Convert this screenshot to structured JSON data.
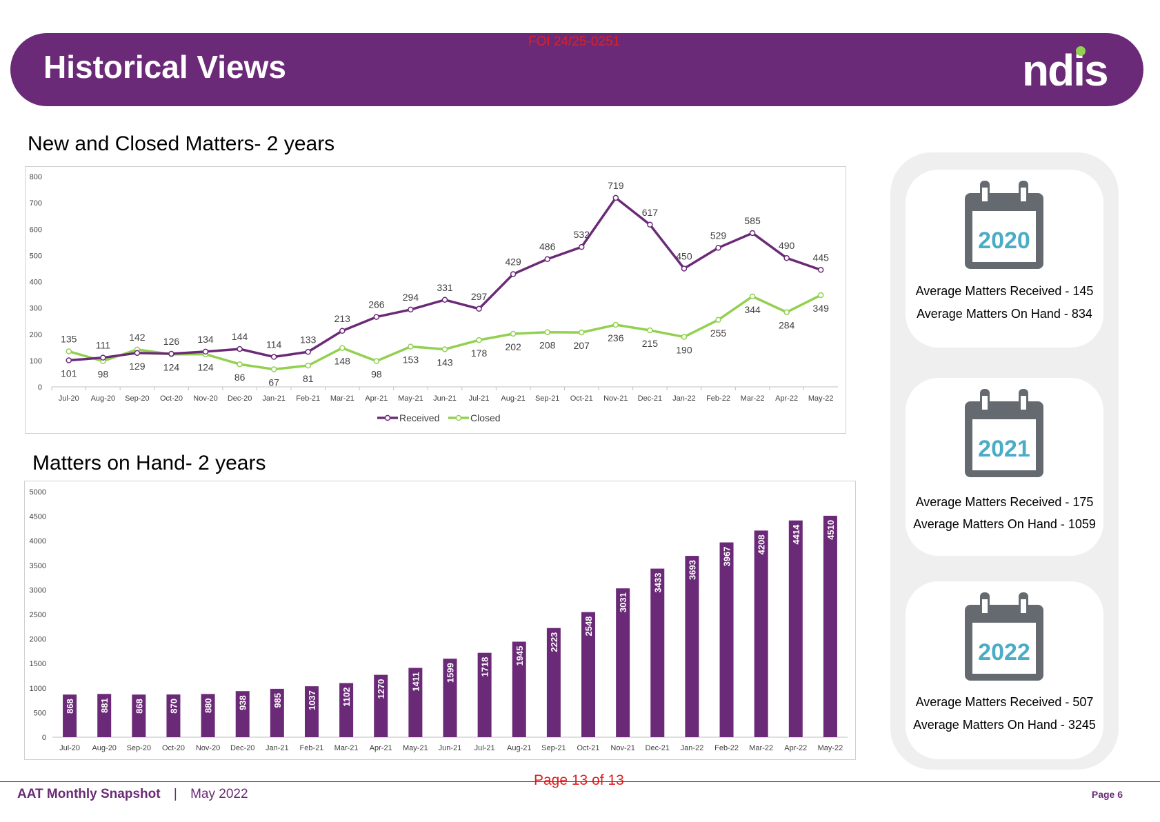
{
  "header": {
    "title": "Historical Views",
    "logo_text": "ndis",
    "foi_stamp": "FOI 24/25-0251"
  },
  "colors": {
    "brand_purple": "#6b2a77",
    "closed_green": "#92d050",
    "calendar_grey": "#656a70",
    "year_teal": "#4bacc6",
    "foi_red": "#e02020"
  },
  "chart_data": [
    {
      "type": "line",
      "title": "New and Closed Matters- 2 years",
      "categories": [
        "Jul-20",
        "Aug-20",
        "Sep-20",
        "Oct-20",
        "Nov-20",
        "Dec-20",
        "Jan-21",
        "Feb-21",
        "Mar-21",
        "Apr-21",
        "May-21",
        "Jun-21",
        "Jul-21",
        "Aug-21",
        "Sep-21",
        "Oct-21",
        "Nov-21",
        "Dec-21",
        "Jan-22",
        "Feb-22",
        "Mar-22",
        "Apr-22",
        "May-22"
      ],
      "series": [
        {
          "name": "Received",
          "color": "#6b2a77",
          "values": [
            101,
            111,
            129,
            126,
            134,
            144,
            114,
            133,
            213,
            266,
            294,
            331,
            297,
            429,
            486,
            532,
            719,
            617,
            450,
            529,
            585,
            490,
            445
          ]
        },
        {
          "name": "Closed",
          "color": "#92d050",
          "values": [
            135,
            98,
            142,
            124,
            124,
            86,
            67,
            81,
            148,
            98,
            153,
            143,
            178,
            202,
            208,
            207,
            236,
            215,
            190,
            255,
            344,
            284,
            349
          ]
        }
      ],
      "ylim": [
        0,
        800
      ],
      "yticks": [
        0,
        100,
        200,
        300,
        400,
        500,
        600,
        700,
        800
      ],
      "legend": "bottom",
      "xlabel": "",
      "ylabel": ""
    },
    {
      "type": "bar",
      "title": "Matters on Hand- 2 years",
      "categories": [
        "Jul-20",
        "Aug-20",
        "Sep-20",
        "Oct-20",
        "Nov-20",
        "Dec-20",
        "Jan-21",
        "Feb-21",
        "Mar-21",
        "Apr-21",
        "May-21",
        "Jun-21",
        "Jul-21",
        "Aug-21",
        "Sep-21",
        "Oct-21",
        "Nov-21",
        "Dec-21",
        "Jan-22",
        "Feb-22",
        "Mar-22",
        "Apr-22",
        "May-22"
      ],
      "values": [
        868,
        881,
        868,
        870,
        880,
        938,
        985,
        1037,
        1102,
        1270,
        1411,
        1599,
        1718,
        1945,
        2223,
        2548,
        3031,
        3433,
        3693,
        3967,
        4208,
        4414,
        4510
      ],
      "color": "#6b2a77",
      "ylim": [
        0,
        5000
      ],
      "yticks": [
        0,
        500,
        1000,
        1500,
        2000,
        2500,
        3000,
        3500,
        4000,
        4500,
        5000
      ],
      "xlabel": "",
      "ylabel": ""
    }
  ],
  "year_cards": [
    {
      "year": "2020",
      "received": "Average Matters Received - 145",
      "on_hand": "Average Matters On Hand - 834"
    },
    {
      "year": "2021",
      "received": "Average Matters Received - 175",
      "on_hand": "Average Matters On Hand - 1059"
    },
    {
      "year": "2022",
      "received": "Average Matters Received - 507",
      "on_hand": "Average Matters On Hand - 3245"
    }
  ],
  "footer": {
    "report_name": "AAT Monthly Snapshot",
    "separator": "|",
    "period": "May 2022",
    "page_label": "Page 6",
    "foi_page": "Page 13 of 13"
  }
}
